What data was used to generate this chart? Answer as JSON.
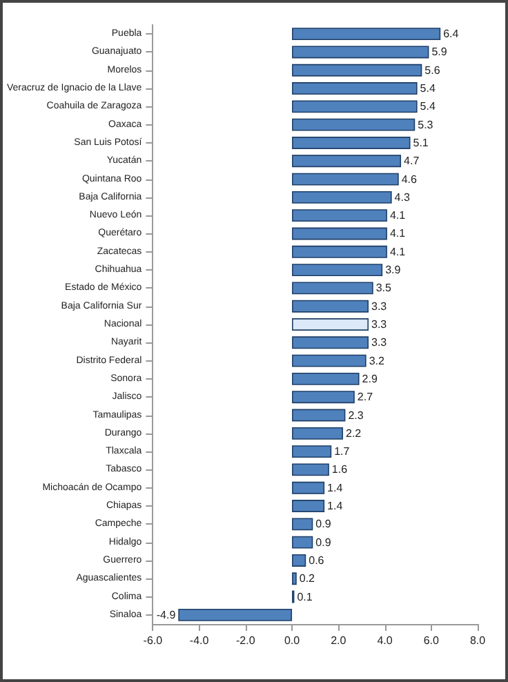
{
  "chart_data": {
    "type": "bar",
    "orientation": "horizontal",
    "data_labels": true,
    "grid": false,
    "categories": [
      "Puebla",
      "Guanajuato",
      "Morelos",
      "Veracruz de Ignacio de la Llave",
      "Coahuila de Zaragoza",
      "Oaxaca",
      "San Luis Potosí",
      "Yucatán",
      "Quintana Roo",
      "Baja California",
      "Nuevo León",
      "Querétaro",
      "Zacatecas",
      "Chihuahua",
      "Estado de México",
      "Baja California Sur",
      "Nacional",
      "Nayarit",
      "Distrito Federal",
      "Sonora",
      "Jalisco",
      "Tamaulipas",
      "Durango",
      "Tlaxcala",
      "Tabasco",
      "Michoacán de Ocampo",
      "Chiapas",
      "Campeche",
      "Hidalgo",
      "Guerrero",
      "Aguascalientes",
      "Colima",
      "Sinaloa"
    ],
    "values": [
      6.4,
      5.9,
      5.6,
      5.4,
      5.4,
      5.3,
      5.1,
      4.7,
      4.6,
      4.3,
      4.1,
      4.1,
      4.1,
      3.9,
      3.5,
      3.3,
      3.3,
      3.3,
      3.2,
      2.9,
      2.7,
      2.3,
      2.2,
      1.7,
      1.6,
      1.4,
      1.4,
      0.9,
      0.9,
      0.6,
      0.2,
      0.1,
      -4.9
    ],
    "colors": [
      "#4f81bd",
      "#4f81bd",
      "#4f81bd",
      "#4f81bd",
      "#4f81bd",
      "#4f81bd",
      "#4f81bd",
      "#4f81bd",
      "#4f81bd",
      "#4f81bd",
      "#4f81bd",
      "#4f81bd",
      "#4f81bd",
      "#4f81bd",
      "#4f81bd",
      "#4f81bd",
      "#dce9f8",
      "#4f81bd",
      "#4f81bd",
      "#4f81bd",
      "#4f81bd",
      "#4f81bd",
      "#4f81bd",
      "#4f81bd",
      "#4f81bd",
      "#4f81bd",
      "#4f81bd",
      "#4f81bd",
      "#4f81bd",
      "#4f81bd",
      "#4f81bd",
      "#4f81bd",
      "#4f81bd"
    ],
    "xlim": [
      -6,
      8
    ],
    "xticks": [
      {
        "value": -6,
        "label": "-6.0"
      },
      {
        "value": -4,
        "label": "-4.0"
      },
      {
        "value": -2,
        "label": "-2.0"
      },
      {
        "value": 0,
        "label": "0.0"
      },
      {
        "value": 2,
        "label": "2.0"
      },
      {
        "value": 4,
        "label": "4.0"
      },
      {
        "value": 6,
        "label": "6.0"
      },
      {
        "value": 8,
        "label": "8.0"
      }
    ]
  }
}
